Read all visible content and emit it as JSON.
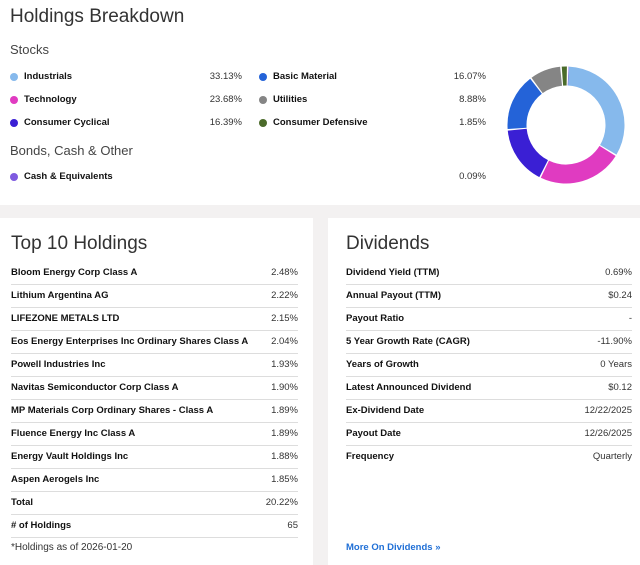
{
  "breakdown": {
    "title": "Holdings Breakdown",
    "stocks_label": "Stocks",
    "bonds_label": "Bonds, Cash & Other",
    "stocks_left": [
      {
        "label": "Industrials",
        "value": "33.13%",
        "color": "#86b9ec"
      },
      {
        "label": "Technology",
        "value": "23.68%",
        "color": "#e03bc1"
      },
      {
        "label": "Consumer Cyclical",
        "value": "16.39%",
        "color": "#3a1fd4"
      }
    ],
    "stocks_right": [
      {
        "label": "Basic Material",
        "value": "16.07%",
        "color": "#2463d8"
      },
      {
        "label": "Utilities",
        "value": "8.88%",
        "color": "#858585"
      },
      {
        "label": "Consumer Defensive",
        "value": "1.85%",
        "color": "#4b6b2a"
      }
    ],
    "other": [
      {
        "label": "Cash & Equivalents",
        "value": "0.09%",
        "color": "#7e5ae0"
      }
    ]
  },
  "chart_data": {
    "type": "pie",
    "donut": true,
    "categories": [
      "Industrials",
      "Technology",
      "Consumer Cyclical",
      "Basic Material",
      "Utilities",
      "Consumer Defensive",
      "Cash & Equivalents"
    ],
    "values": [
      33.13,
      23.68,
      16.39,
      16.07,
      8.88,
      1.85,
      0.09
    ],
    "colors": [
      "#86b9ec",
      "#e03bc1",
      "#3a1fd4",
      "#2463d8",
      "#858585",
      "#4b6b2a",
      "#7e5ae0"
    ]
  },
  "top10": {
    "title": "Top 10 Holdings",
    "rows": [
      {
        "label": "Bloom Energy Corp Class A",
        "value": "2.48%"
      },
      {
        "label": "Lithium Argentina AG",
        "value": "2.22%"
      },
      {
        "label": "LIFEZONE METALS LTD",
        "value": "2.15%"
      },
      {
        "label": "Eos Energy Enterprises Inc Ordinary Shares Class A",
        "value": "2.04%"
      },
      {
        "label": "Powell Industries Inc",
        "value": "1.93%"
      },
      {
        "label": "Navitas Semiconductor Corp Class A",
        "value": "1.90%"
      },
      {
        "label": "MP Materials Corp Ordinary Shares - Class A",
        "value": "1.89%"
      },
      {
        "label": "Fluence Energy Inc Class A",
        "value": "1.89%"
      },
      {
        "label": "Energy Vault Holdings Inc",
        "value": "1.88%"
      },
      {
        "label": "Aspen Aerogels Inc",
        "value": "1.85%"
      },
      {
        "label": "Total",
        "value": "20.22%"
      },
      {
        "label": "# of Holdings",
        "value": "65"
      }
    ],
    "note": "*Holdings as of 2026-01-20"
  },
  "dividends": {
    "title": "Dividends",
    "rows": [
      {
        "label": "Dividend Yield (TTM)",
        "value": "0.69%"
      },
      {
        "label": "Annual Payout (TTM)",
        "value": "$0.24"
      },
      {
        "label": "Payout Ratio",
        "value": "-"
      },
      {
        "label": "5 Year Growth Rate (CAGR)",
        "value": "-11.90%"
      },
      {
        "label": "Years of Growth",
        "value": "0 Years"
      },
      {
        "label": "Latest Announced Dividend",
        "value": "$0.12"
      },
      {
        "label": "Ex-Dividend Date",
        "value": "12/22/2025"
      },
      {
        "label": "Payout Date",
        "value": "12/26/2025"
      },
      {
        "label": "Frequency",
        "value": "Quarterly"
      }
    ],
    "more_link": "More On Dividends »"
  }
}
